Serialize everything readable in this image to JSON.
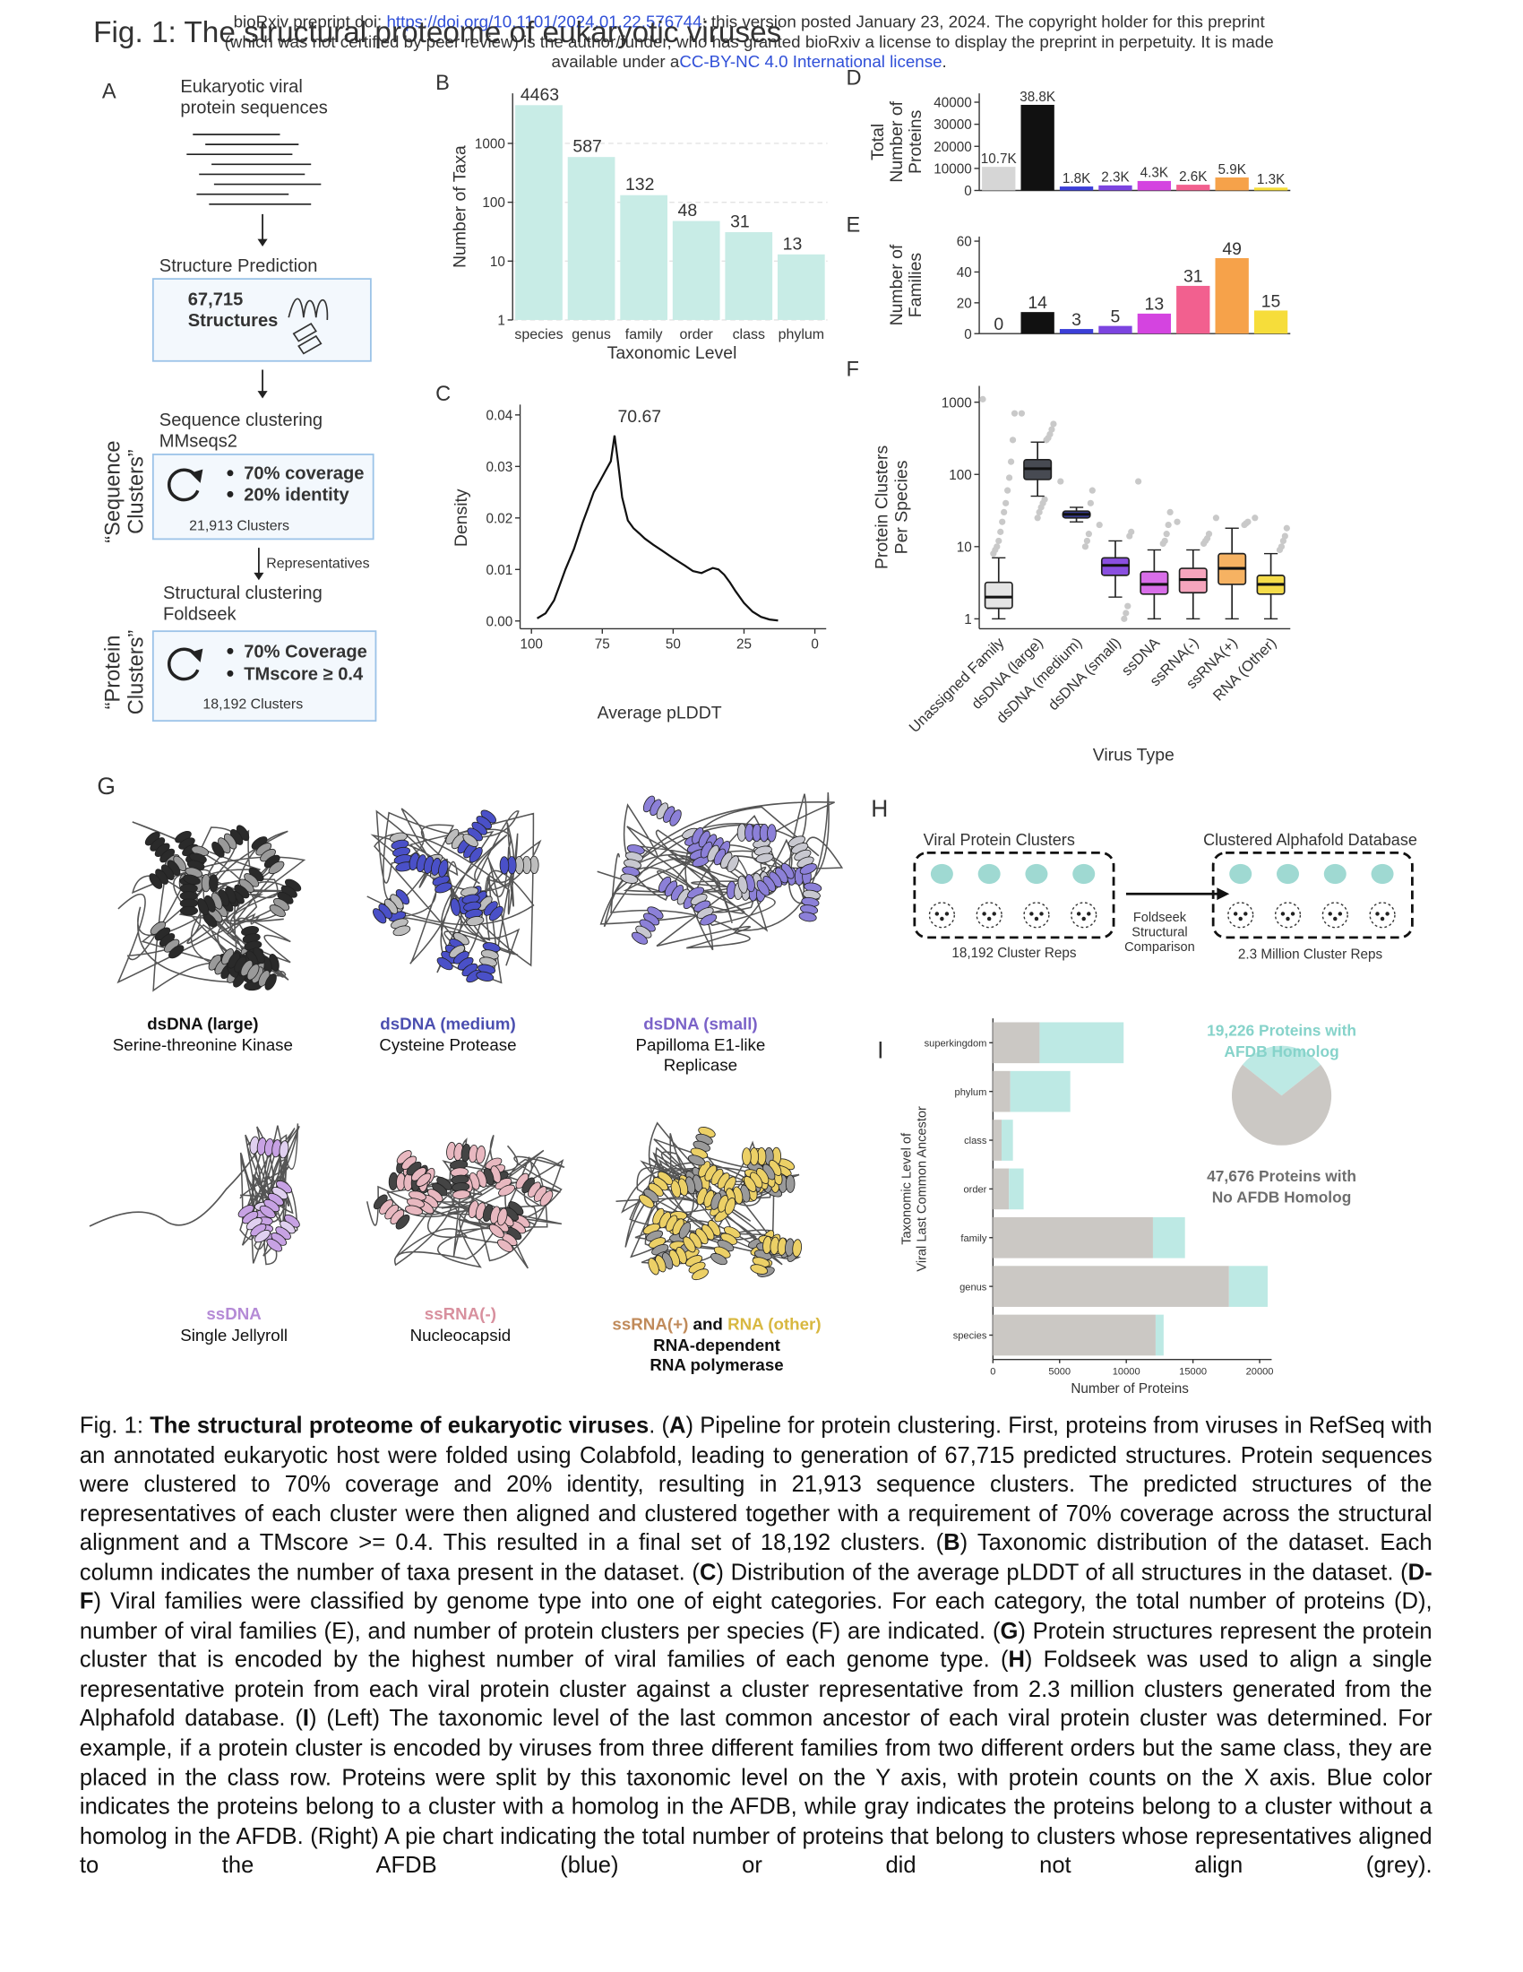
{
  "header": {
    "line1_pre": "bioRxiv preprint doi: ",
    "doi": "https://doi.org/10.1101/2024.01.22.576744",
    "line1_post": "; this version posted January 23, 2024. The copyright holder for this preprint",
    "line2": "(which was not certified by peer review) is the author/funder, who has granted bioRxiv a license to display the preprint in perpetuity. It is made",
    "line3_pre": "available under a",
    "license": "CC-BY-NC 4.0 International license",
    "line3_post": "."
  },
  "figure_title": "Fig. 1: The structural proteome of eukaryotic viruses",
  "panel_a": {
    "label": "A",
    "input": [
      "Eukaryotic viral",
      "protein sequences"
    ],
    "step1": "Structure Prediction",
    "box1": [
      "67,715",
      "Structures"
    ],
    "step2": [
      "Sequence clustering",
      "MMseqs2"
    ],
    "box2_bullets": [
      "70% coverage",
      "20% identity"
    ],
    "box2_count": "21,913 Clusters",
    "arrow_label": "Representatives",
    "step3": [
      "Structural clustering",
      "Foldseek"
    ],
    "box3_bullets": [
      "70% Coverage",
      "TMscore ≥ 0.4"
    ],
    "box3_count": "18,192 Clusters",
    "side_labels": [
      [
        "“Sequence",
        "Clusters”"
      ],
      [
        "“Protein",
        "Clusters”"
      ]
    ]
  },
  "panel_b": {
    "label": "B",
    "type": "bar",
    "log": true,
    "categories": [
      "species",
      "genus",
      "family",
      "order",
      "class",
      "phylum"
    ],
    "values": [
      4463,
      587,
      132,
      48,
      31,
      13
    ],
    "color": "#c8ece6",
    "ylim": [
      1,
      7080
    ],
    "yticks": [
      1,
      10,
      100,
      1000
    ],
    "grid": true,
    "ylabel": "Number of Taxa",
    "xlabel": "Taxonomic Level"
  },
  "panel_c": {
    "label": "C",
    "type": "line",
    "x": [
      98,
      95,
      92,
      90,
      88,
      85,
      82,
      80,
      78,
      76,
      74,
      72,
      70.67,
      69.5,
      68,
      66,
      64,
      62,
      60,
      57,
      54,
      50,
      46,
      43,
      40,
      38,
      36,
      34,
      32,
      30,
      28,
      25,
      22,
      19,
      16,
      13
    ],
    "y": [
      0.0005,
      0.0015,
      0.004,
      0.007,
      0.01,
      0.014,
      0.019,
      0.022,
      0.025,
      0.027,
      0.029,
      0.031,
      0.036,
      0.031,
      0.024,
      0.0195,
      0.018,
      0.017,
      0.016,
      0.0148,
      0.0137,
      0.0122,
      0.0108,
      0.0097,
      0.0093,
      0.0098,
      0.0103,
      0.01,
      0.009,
      0.0075,
      0.0058,
      0.0035,
      0.0018,
      0.0008,
      0.0003,
      0.0001
    ],
    "color": "#111111",
    "peak_label": 70.67,
    "xlim": [
      104,
      -4
    ],
    "xticks": [
      100,
      75,
      50,
      25,
      0
    ],
    "ylim": [
      -0.0015,
      0.042
    ],
    "yticks": [
      {
        "value": 0,
        "label": "0.00"
      },
      0.01,
      0.02,
      0.03,
      0.04
    ],
    "ylabel": "Density",
    "xlabel": "Average pLDDT"
  },
  "panel_d": {
    "label": "D",
    "type": "bar",
    "values": [
      10700,
      38800,
      1800,
      2300,
      4300,
      2600,
      5900,
      1300
    ],
    "value_labels": [
      "10.7K",
      "38.8K",
      "1.8K",
      "2.3K",
      "4.3K",
      "2.6K",
      "5.9K",
      "1.3K"
    ],
    "colors": [
      "#d6d6d6",
      "#111111",
      "#3b3fd8",
      "#7c44e0",
      "#d444e0",
      "#f2608f",
      "#f6a24a",
      "#f6dd3a"
    ],
    "ylim": [
      0,
      44000
    ],
    "yticks": [
      0,
      10000,
      20000,
      30000,
      40000
    ],
    "ylabel": [
      "Total",
      "Number of",
      "Proteins"
    ]
  },
  "panel_e": {
    "label": "E",
    "type": "bar",
    "values": [
      0,
      14,
      3,
      5,
      13,
      31,
      49,
      15
    ],
    "colors": [
      "#d6d6d6",
      "#111111",
      "#3b3fd8",
      "#7c44e0",
      "#d444e0",
      "#f2608f",
      "#f6a24a",
      "#f6dd3a"
    ],
    "ylim": [
      0,
      63
    ],
    "yticks": [
      0,
      20,
      40,
      60
    ],
    "ylabel": [
      "Number of",
      "Families"
    ]
  },
  "panel_f": {
    "label": "F",
    "type": "box",
    "log": true,
    "categories": [
      "Unassigned Family",
      "dsDNA (large)",
      "dsDNA (medium)",
      "dsDNA (small)",
      "ssDNA",
      "ssRNA(-)",
      "ssRNA(+)",
      "RNA (Other)"
    ],
    "boxes": [
      {
        "low": 1,
        "q1": 1.4,
        "median": 2,
        "q3": 3.2,
        "high": 7,
        "outliers": [
          1100,
          700,
          300,
          150,
          90,
          60,
          40,
          30,
          22,
          16,
          12,
          10,
          9,
          8
        ]
      },
      {
        "low": 50,
        "q1": 85,
        "median": 120,
        "q3": 160,
        "high": 280,
        "outliers": [
          700,
          500,
          420,
          360,
          320,
          300,
          45,
          40,
          35,
          30,
          25
        ]
      },
      {
        "low": 22,
        "q1": 25,
        "median": 28,
        "q3": 31,
        "high": 35,
        "outliers": [
          80,
          60,
          40,
          15,
          12,
          10
        ]
      },
      {
        "low": 2,
        "q1": 4,
        "median": 5.5,
        "q3": 7,
        "high": 12,
        "outliers": [
          20,
          16,
          14,
          1.5,
          1.2,
          1
        ]
      },
      {
        "low": 1,
        "q1": 2.2,
        "median": 3,
        "q3": 4.5,
        "high": 9,
        "outliers": [
          80,
          30,
          20,
          15,
          12,
          11
        ]
      },
      {
        "low": 1,
        "q1": 2.3,
        "median": 3.5,
        "q3": 5,
        "high": 9,
        "outliers": [
          22,
          15,
          13,
          12,
          11
        ]
      },
      {
        "low": 1,
        "q1": 3,
        "median": 5,
        "q3": 8,
        "high": 18,
        "outliers": [
          25,
          22,
          21,
          20
        ]
      },
      {
        "low": 1,
        "q1": 2.2,
        "median": 3,
        "q3": 4,
        "high": 8,
        "outliers": [
          25,
          18,
          14,
          12,
          10,
          9
        ]
      }
    ],
    "colors": [
      "#e4e4e4",
      "#474a52",
      "#3a3f9c",
      "#8a4fe0",
      "#d86ee8",
      "#f5a5bd",
      "#f6b262",
      "#f5dc4a"
    ],
    "ylim": [
      0.73,
      1680
    ],
    "yticks": [
      1,
      10,
      100,
      1000
    ],
    "ylabel": [
      "Protein Clusters",
      "Per Species"
    ],
    "xlabel": "Virus Type"
  },
  "panel_g": {
    "label": "G",
    "structures": [
      {
        "type": [
          "dsDNA (large)"
        ],
        "name": [
          "Serine-threonine Kinase"
        ]
      },
      {
        "type": [
          "dsDNA (medium)"
        ],
        "name": [
          "Cysteine Protease"
        ]
      },
      {
        "type": [
          "dsDNA (small)"
        ],
        "name": [
          "Papilloma E1-like",
          "Replicase"
        ]
      },
      {
        "type": [
          "ssDNA"
        ],
        "name": [
          "Single Jellyroll"
        ]
      },
      {
        "type": [
          "ssRNA(-)"
        ],
        "name": [
          "Nucleocapsid"
        ]
      },
      {
        "type": [
          "ssRNA(+)",
          " and ",
          "RNA (other)"
        ],
        "name": [
          "RNA-dependent",
          "RNA polymerase"
        ]
      }
    ]
  },
  "panel_h": {
    "label": "H",
    "left_title": "Viral Protein Clusters",
    "right_title": "Clustered Alphafold Database",
    "arrow_label": [
      "Foldseek",
      "Structural",
      "Comparison"
    ],
    "left_count": "18,192 Cluster Reps",
    "right_count": "2.3 Million Cluster Reps"
  },
  "panel_i": {
    "label": "I",
    "type": "hbar_stacked",
    "categories": [
      "superkingdom",
      "phylum",
      "class",
      "order",
      "family",
      "genus",
      "species"
    ],
    "series": [
      {
        "color": "#cbc8c4",
        "values": [
          3500,
          1300,
          650,
          1200,
          12000,
          17700,
          12200
        ]
      },
      {
        "color": "#bde9e4",
        "values": [
          6300,
          4500,
          850,
          1100,
          2400,
          2900,
          600
        ]
      }
    ],
    "xlim": [
      0,
      20900
    ],
    "xticks": [
      0,
      5000,
      10000,
      15000,
      20000
    ],
    "xlabel": "Number of Proteins",
    "ylabel": [
      "Taxonomic Level of",
      "Viral Last Common Ancestor"
    ],
    "pie": {
      "labels": [
        [
          "19,226 Proteins with",
          "AFDB Homolog"
        ],
        [
          "47,676 Proteins with",
          "No AFDB Homolog"
        ]
      ],
      "values": [
        19226,
        47676
      ],
      "colors": [
        "#bde9e4",
        "#cbc8c4"
      ]
    }
  },
  "caption": [
    {
      "text": "Fig. 1: ",
      "bold": false
    },
    {
      "text": "The structural proteome of eukaryotic viruses",
      "bold": true
    },
    {
      "text": ". (",
      "bold": false
    },
    {
      "text": "A",
      "bold": true
    },
    {
      "text": ") Pipeline for protein clustering. First, proteins from viruses in RefSeq with an annotated eukaryotic host were folded using Colabfold, leading to generation of 67,715 predicted structures. Protein sequences were clustered to 70% coverage and 20% identity, resulting in 21,913 sequence clusters. The predicted structures of the representatives of each cluster were then aligned and clustered together with a requirement of 70% coverage across the structural alignment and a TMscore >= 0.4. This resulted in a final set of 18,192 clusters. (",
      "bold": false
    },
    {
      "text": "B",
      "bold": true
    },
    {
      "text": ") Taxonomic distribution of the dataset. Each column indicates the number of taxa present in the dataset. (",
      "bold": false
    },
    {
      "text": "C",
      "bold": true
    },
    {
      "text": ") Distribution of the average pLDDT of all structures in the dataset. (",
      "bold": false
    },
    {
      "text": "D-F",
      "bold": true
    },
    {
      "text": ") Viral families were classified by genome type into one of eight categories. For each category, the total number of proteins (D), number of viral families (E), and number of protein clusters per species (F) are indicated. (",
      "bold": false
    },
    {
      "text": "G",
      "bold": true
    },
    {
      "text": ") Protein structures represent the protein cluster that is encoded by the highest number of viral families of each genome type. (",
      "bold": false
    },
    {
      "text": "H",
      "bold": true
    },
    {
      "text": ") Foldseek was used to align a single representative protein from each viral protein cluster against a cluster representative from 2.3 million clusters generated from the Alphafold database. (",
      "bold": false
    },
    {
      "text": "I",
      "bold": true
    },
    {
      "text": ") (Left) The taxonomic level of the last common ancestor of each viral protein cluster was determined. For example, if a protein cluster is encoded by viruses from three different families from two different orders but the same class, they are placed in the class row. Proteins were split by this taxonomic level on the Y axis, with protein counts on the X axis. Blue color indicates the proteins belong to a cluster with a homolog in the AFDB, while gray indicates the proteins belong to a cluster without a homolog in the AFDB. (Right) A pie chart indicating the total number of proteins that belong to clusters whose representatives aligned to the AFDB (blue) or did not align (grey).",
      "bold": false
    }
  ]
}
